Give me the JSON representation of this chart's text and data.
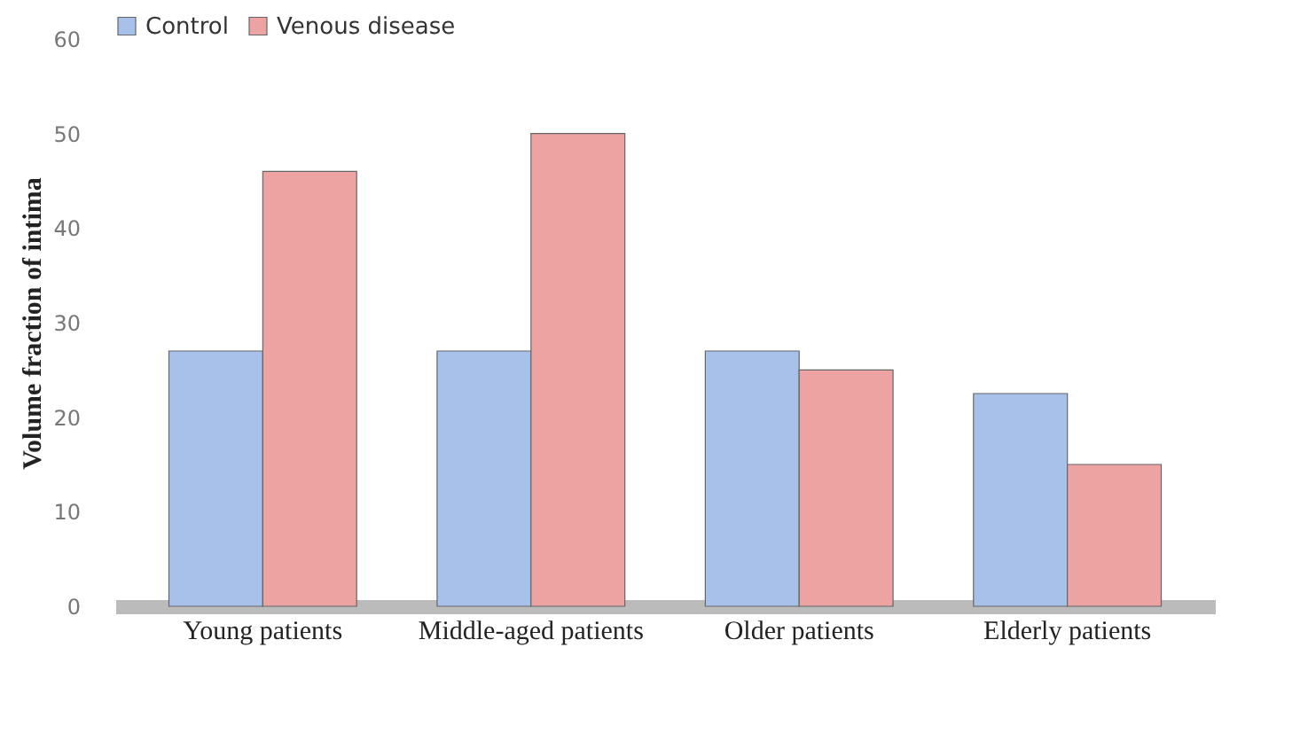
{
  "chart_data": {
    "type": "bar",
    "ylabel": "Volume  fraction of intima",
    "categories": [
      "Young patients",
      "Middle-aged patients",
      "Older patients",
      "Elderly patients"
    ],
    "series": [
      {
        "name": "Control",
        "color": "#a7c1ea",
        "values": [
          27,
          27,
          27,
          22.5
        ]
      },
      {
        "name": "Venous disease",
        "color": "#eea3a3",
        "values": [
          46,
          50,
          25,
          15
        ]
      }
    ],
    "ylim": [
      0,
      60
    ],
    "yticks": [
      0,
      10,
      20,
      30,
      40,
      50,
      60
    ],
    "grid": false,
    "legend": "top"
  }
}
